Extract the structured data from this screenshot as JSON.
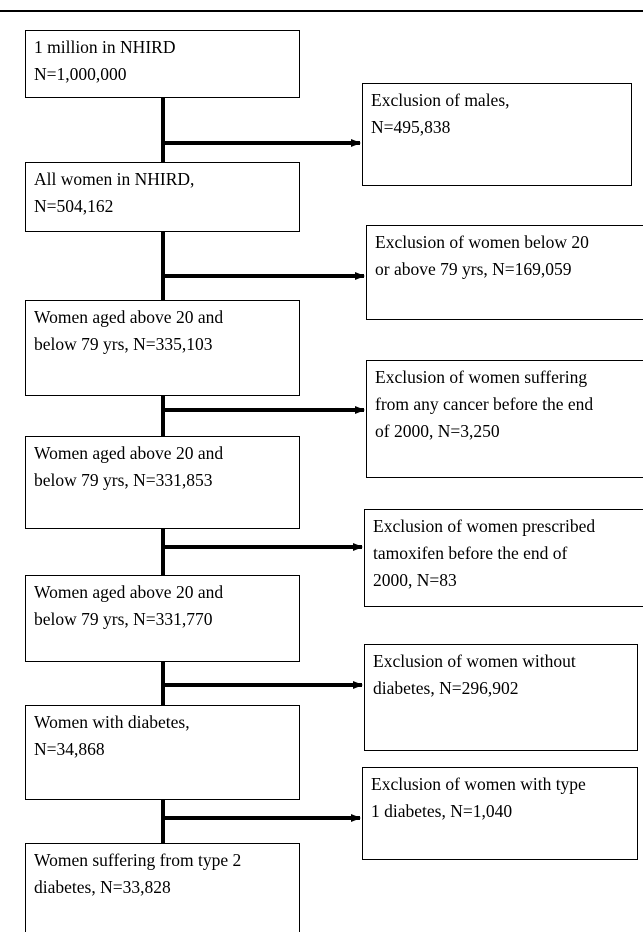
{
  "flowchart": {
    "main_steps": [
      {
        "text": "1 million in NHIRD\nN=1,000,000"
      },
      {
        "text": "All women in NHIRD,\nN=504,162"
      },
      {
        "text": "Women aged above 20 and\nbelow 79 yrs, N=335,103"
      },
      {
        "text": "Women aged above 20 and\nbelow 79 yrs, N=331,853"
      },
      {
        "text": "Women aged above 20 and\nbelow 79 yrs, N=331,770"
      },
      {
        "text": "Women with diabetes,\nN=34,868"
      },
      {
        "text": "Women suffering from type 2\ndiabetes, N=33,828"
      }
    ],
    "exclusions": [
      {
        "text": "Exclusion of males,\nN=495,838"
      },
      {
        "text": "Exclusion of women below 20\nor above 79 yrs, N=169,059"
      },
      {
        "text": "Exclusion of women suffering\nfrom any cancer before the end\nof 2000, N=3,250"
      },
      {
        "text": "Exclusion of women prescribed\ntamoxifen before the end of\n2000, N=83"
      },
      {
        "text": "Exclusion of women without\ndiabetes, N=296,902"
      },
      {
        "text": "Exclusion of women with type\n1 diabetes, N=1,040"
      }
    ]
  }
}
